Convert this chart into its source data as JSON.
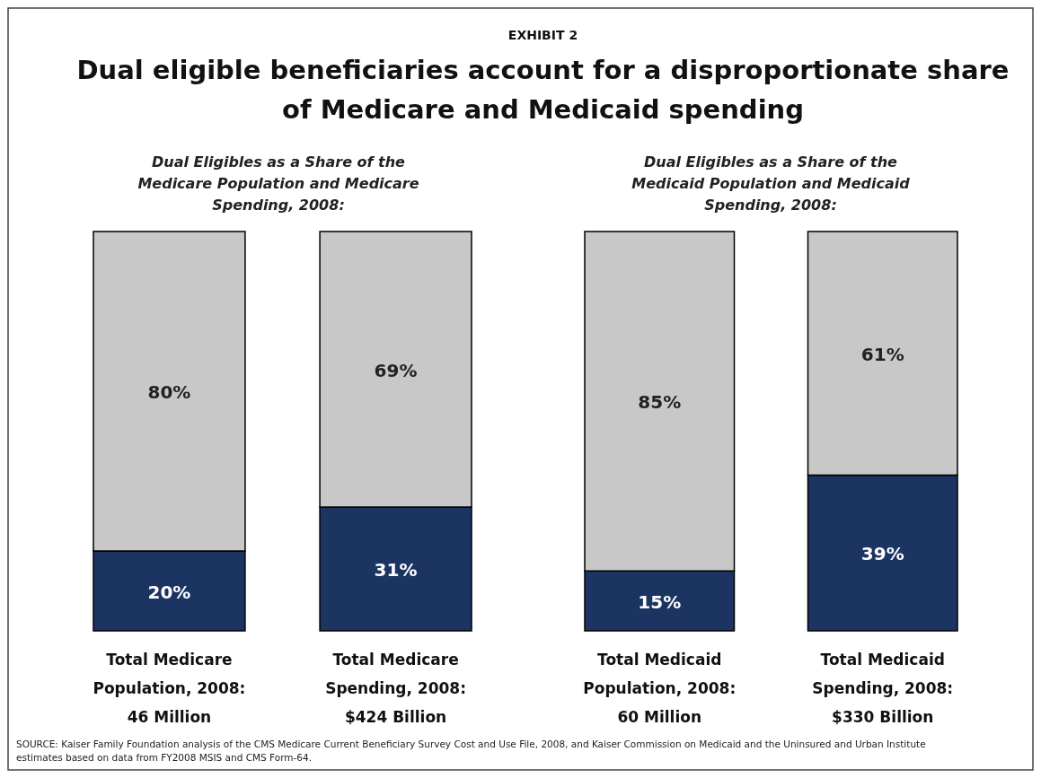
{
  "chart_data": [
    {
      "type": "bar",
      "title": "Dual eligible beneficiaries account for a disproportionate share of Medicare and Medicaid spending",
      "subtitle": "Dual Eligibles as a Share of the\nMedicare Population and Medicare\nSpending, 2008:",
      "annotations": [
        "EXHIBIT 2",
        "SOURCE: Kaiser Family Foundation analysis of the CMS Medicare Current Beneficiary Survey Cost and Use File, 2008, and Kaiser Commission on Medicaid and the Uninsured and Urban Institute estimates based on data from FY2008 MSIS and CMS Form-64."
      ],
      "categories": [
        "Total Medicare\nPopulation, 2008:\n46 Million",
        "Total Medicare\nSpending, 2008:\n$424 Billion"
      ],
      "stacked": true,
      "series": [
        {
          "color": "#1b3461",
          "values": [
            20,
            31
          ],
          "value_labels": [
            "20%",
            "31%"
          ]
        },
        {
          "color": "#c8c8c8",
          "values": [
            80,
            69
          ],
          "value_labels": [
            "80%",
            "69%"
          ]
        }
      ]
    },
    {
      "type": "bar",
      "subtitle": "Dual Eligibles as a Share of the\nMedicaid Population and Medicaid\nSpending, 2008:",
      "categories": [
        "Total Medicaid\nPopulation, 2008:\n60 Million",
        "Total Medicaid\nSpending, 2008:\n$330 Billion"
      ],
      "stacked": true,
      "series": [
        {
          "color": "#1b3461",
          "values": [
            15,
            39
          ],
          "value_labels": [
            "15%",
            "39%"
          ]
        },
        {
          "color": "#c8c8c8",
          "values": [
            85,
            61
          ],
          "value_labels": [
            "85%",
            "61%"
          ]
        }
      ]
    }
  ]
}
